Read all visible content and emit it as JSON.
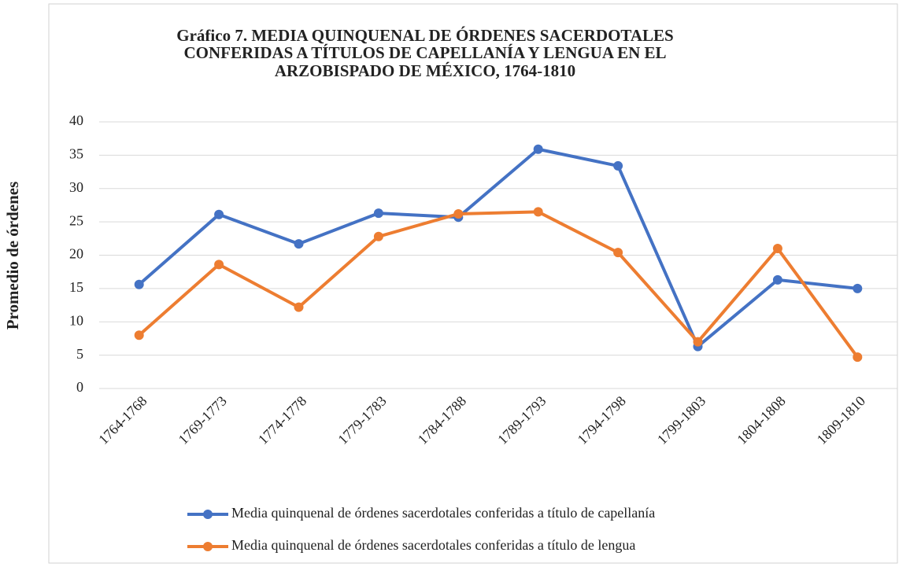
{
  "chart_data": {
    "type": "line",
    "title": [
      "Gráfico 7. MEDIA QUINQUENAL DE ÓRDENES SACERDOTALES",
      "CONFERIDAS A TÍTULOS DE CAPELLANÍA Y LENGUA EN EL",
      "ARZOBISPADO DE MÉXICO, 1764-1810"
    ],
    "y_label": "Promedio de órdenes",
    "categories": [
      "1764-1768",
      "1769-1773",
      "1774-1778",
      "1779-1783",
      "1784-1788",
      "1789-1793",
      "1794-1798",
      "1799-1803",
      "1804-1808",
      "1809-1810"
    ],
    "series": [
      {
        "name": "Media quinquenal de órdenes sacerdotales conferidas a título de capellanía",
        "color": "#4472c4",
        "values": [
          15.6,
          26.1,
          21.7,
          26.3,
          25.7,
          35.9,
          33.4,
          6.3,
          16.3,
          15.0
        ]
      },
      {
        "name": "Media quinquenal de órdenes sacerdotales conferidas a título de lengua",
        "color": "#ed7d31",
        "values": [
          8.0,
          18.6,
          12.2,
          22.8,
          26.2,
          26.5,
          20.4,
          7.0,
          21.0,
          4.7
        ]
      }
    ],
    "ylim": [
      0,
      40
    ],
    "yticks": [
      0,
      5,
      10,
      15,
      20,
      25,
      30,
      35,
      40
    ],
    "grid": true,
    "legend": "bottom"
  }
}
